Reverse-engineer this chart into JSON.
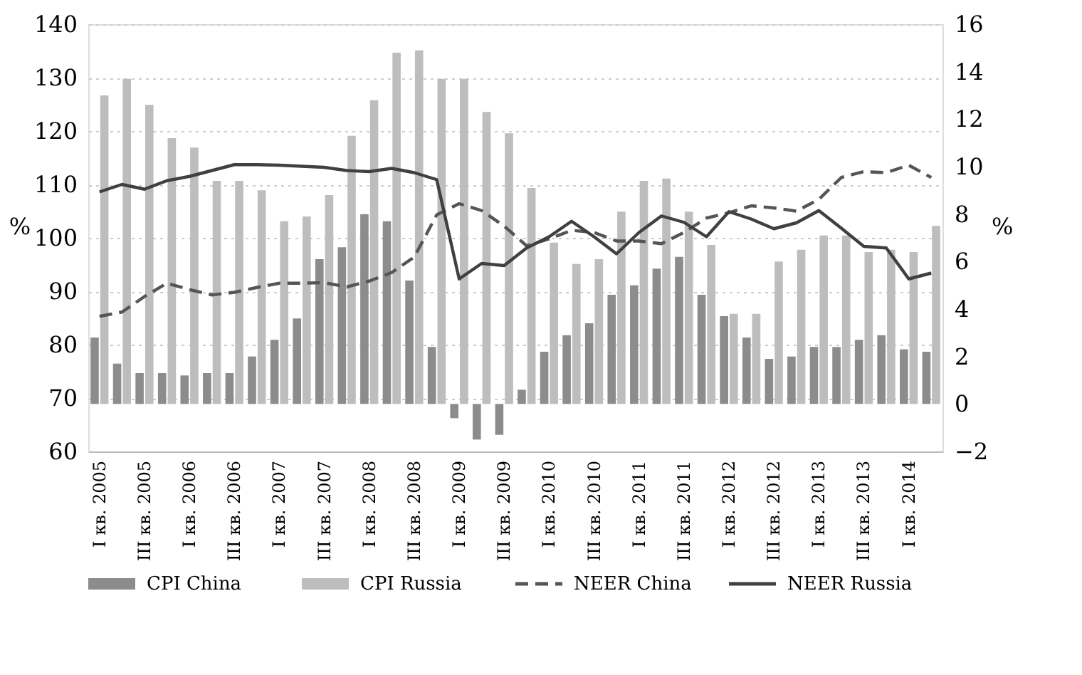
{
  "chart_data": {
    "type": "bar",
    "ylabel": "%",
    "y2label": "%",
    "categories": [
      "I кв. 2005",
      null,
      "III кв. 2005",
      null,
      "I кв. 2006",
      null,
      "III кв. 2006",
      null,
      "I кв. 2007",
      null,
      "III кв. 2007",
      null,
      "I кв. 2008",
      null,
      "III кв. 2008",
      null,
      "I кв. 2009",
      null,
      "III кв. 2009",
      null,
      "I кв. 2010",
      null,
      "III кв. 2010",
      null,
      "I кв. 2011",
      null,
      "III кв. 2011",
      null,
      "I кв. 2012",
      null,
      "III кв. 2012",
      null,
      "I кв. 2013",
      null,
      "III кв. 2013",
      null,
      "I кв. 2014",
      null
    ],
    "series": [
      {
        "name": "CPI China",
        "axis": "y2",
        "color": "#8c8c8c",
        "values": [
          2.8,
          1.7,
          1.3,
          1.3,
          1.2,
          1.3,
          1.3,
          2.0,
          2.7,
          3.6,
          6.1,
          6.6,
          8.0,
          7.7,
          5.2,
          2.4,
          -0.6,
          -1.5,
          -1.3,
          0.6,
          2.2,
          2.9,
          3.4,
          4.6,
          5.0,
          5.7,
          6.2,
          4.6,
          3.7,
          2.8,
          1.9,
          2.0,
          2.4,
          2.4,
          2.7,
          2.9,
          2.3,
          2.2
        ]
      },
      {
        "name": "CPI Russia",
        "axis": "y2",
        "color": "#bdbdbd",
        "values": [
          13.0,
          13.7,
          12.6,
          11.2,
          10.8,
          9.4,
          9.4,
          9.0,
          7.7,
          7.9,
          8.8,
          11.3,
          12.8,
          14.8,
          14.9,
          13.7,
          13.7,
          12.3,
          11.4,
          9.1,
          6.8,
          5.9,
          6.1,
          8.1,
          9.4,
          9.5,
          8.1,
          6.7,
          3.8,
          3.8,
          6.0,
          6.5,
          7.1,
          7.1,
          6.4,
          6.5,
          6.4,
          7.5
        ]
      },
      {
        "name": "NEER China",
        "type": "line",
        "line_style": "dashed",
        "color": "#555555",
        "values": [
          85.3,
          86.1,
          89.0,
          91.5,
          90.3,
          89.3,
          89.8,
          90.7,
          91.5,
          91.5,
          91.6,
          90.8,
          91.9,
          93.5,
          96.4,
          104.3,
          106.4,
          105.1,
          102.2,
          98.5,
          99.8,
          101.4,
          101.0,
          99.4,
          99.4,
          98.9,
          101.0,
          103.7,
          104.7,
          106.0,
          105.6,
          105.0,
          107.2,
          111.3,
          112.4,
          112.2,
          113.6,
          111.3
        ]
      },
      {
        "name": "NEER Russia",
        "type": "line",
        "line_style": "solid",
        "color": "#404040",
        "values": [
          108.6,
          110.0,
          109.1,
          110.7,
          111.5,
          112.6,
          113.7,
          113.7,
          113.6,
          113.4,
          113.2,
          112.6,
          112.4,
          113.0,
          112.2,
          110.9,
          92.3,
          95.2,
          94.8,
          98.1,
          100.2,
          103.1,
          100.2,
          97.0,
          101.0,
          104.1,
          102.9,
          100.2,
          104.9,
          103.5,
          101.7,
          102.8,
          105.1,
          101.8,
          98.4,
          98.1,
          92.3,
          93.4
        ]
      }
    ],
    "ylim": [
      60,
      140
    ],
    "yticks": [
      60,
      70,
      80,
      90,
      100,
      110,
      120,
      130,
      140
    ],
    "y2lim": [
      -2,
      16
    ],
    "y2ticks": [
      {
        "value": -2,
        "label": "−2"
      },
      0,
      2,
      4,
      6,
      8,
      10,
      12,
      14,
      16
    ],
    "grid": "y",
    "legend": "bottom"
  }
}
